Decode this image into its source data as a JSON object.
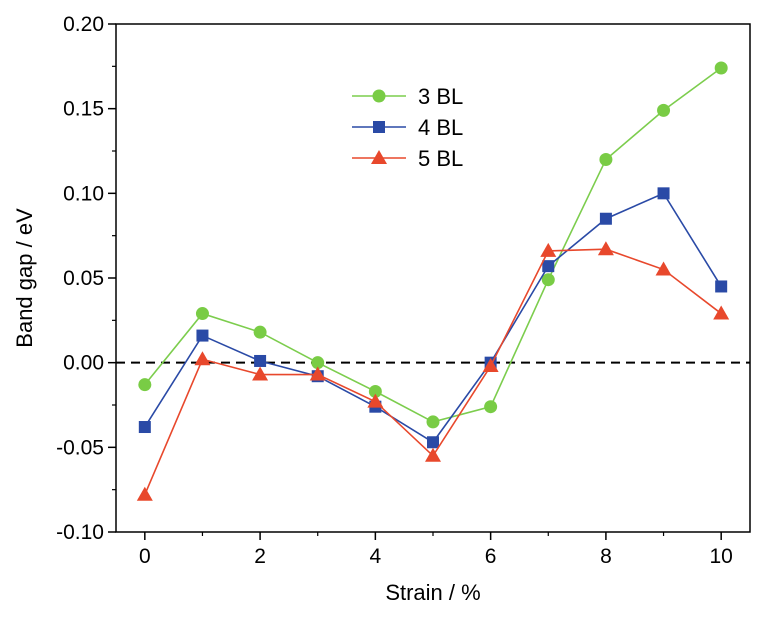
{
  "chart_data": {
    "type": "line",
    "title": "",
    "xlabel": "Strain / %",
    "ylabel": "Band gap / eV",
    "xlim": [
      -0.5,
      10.5
    ],
    "ylim": [
      -0.1,
      0.2
    ],
    "x_ticks": [
      0,
      2,
      4,
      6,
      8,
      10
    ],
    "x_tick_labels": [
      "0",
      "2",
      "4",
      "6",
      "8",
      "10"
    ],
    "y_ticks": [
      -0.1,
      -0.05,
      0.0,
      0.05,
      0.1,
      0.15,
      0.2
    ],
    "y_tick_labels": [
      "-0.10",
      "-0.05",
      "0.00",
      "0.05",
      "0.10",
      "0.15",
      "0.20"
    ],
    "reference_line": {
      "y": 0.0,
      "style": "dashed",
      "color": "#000000"
    },
    "legend": {
      "placement": "top-center"
    },
    "grid": false,
    "x": [
      0,
      1,
      2,
      3,
      4,
      5,
      6,
      7,
      8,
      9,
      10
    ],
    "series": [
      {
        "name": "3 BL",
        "marker": "circle",
        "color": "#7ccd4d",
        "markerColor": "#79cc45",
        "values": [
          -0.013,
          0.029,
          0.018,
          0.0,
          -0.017,
          -0.035,
          -0.026,
          0.049,
          0.12,
          0.149,
          0.174
        ]
      },
      {
        "name": "4 BL",
        "marker": "square",
        "color": "#2a4aa6",
        "markerColor": "#2a4aa6",
        "values": [
          -0.038,
          0.016,
          0.001,
          -0.008,
          -0.026,
          -0.047,
          0.0,
          0.057,
          0.085,
          0.1,
          0.045
        ]
      },
      {
        "name": "5 BL",
        "marker": "triangle",
        "color": "#e8482c",
        "markerColor": "#e8482c",
        "values": [
          -0.078,
          0.002,
          -0.007,
          -0.007,
          -0.023,
          -0.055,
          -0.002,
          0.066,
          0.067,
          0.055,
          0.029
        ]
      }
    ]
  }
}
